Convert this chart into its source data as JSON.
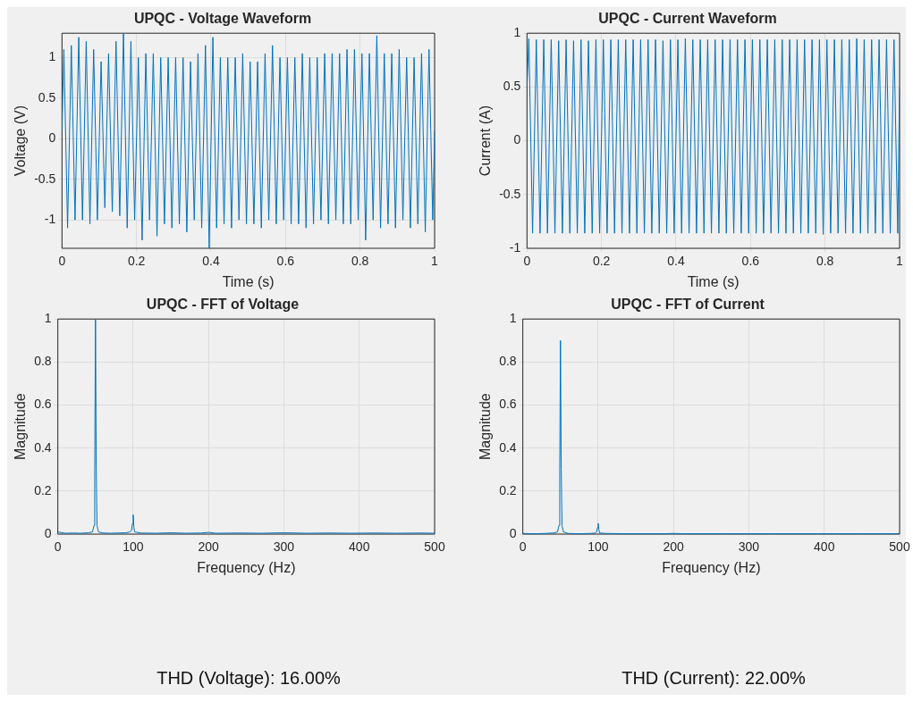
{
  "chart_data": [
    {
      "type": "line",
      "title": "UPQC - Voltage Waveform",
      "xlabel": "Time (s)",
      "ylabel": "Voltage (V)",
      "xlim": [
        0,
        1
      ],
      "xticks": [
        0,
        0.2,
        0.4,
        0.6,
        0.8,
        1
      ],
      "ylim": [
        -1.35,
        1.3
      ],
      "yticks": [
        -1,
        -0.5,
        0,
        0.5,
        1
      ],
      "grid": true,
      "marker": "none",
      "series": [
        {
          "color": "#0072bd",
          "x": [
            0,
            0.005,
            0.015,
            0.025,
            0.035,
            0.045,
            0.055,
            0.065,
            0.075,
            0.085,
            0.095,
            0.105,
            0.115,
            0.125,
            0.135,
            0.145,
            0.155,
            0.165,
            0.175,
            0.185,
            0.195,
            0.205,
            0.215,
            0.225,
            0.235,
            0.245,
            0.255,
            0.265,
            0.275,
            0.285,
            0.295,
            0.305,
            0.315,
            0.325,
            0.335,
            0.345,
            0.355,
            0.365,
            0.375,
            0.385,
            0.395,
            0.405,
            0.415,
            0.425,
            0.435,
            0.445,
            0.455,
            0.465,
            0.475,
            0.485,
            0.495,
            0.505,
            0.515,
            0.525,
            0.535,
            0.545,
            0.555,
            0.565,
            0.575,
            0.585,
            0.595,
            0.605,
            0.615,
            0.625,
            0.635,
            0.645,
            0.655,
            0.665,
            0.675,
            0.685,
            0.695,
            0.705,
            0.715,
            0.725,
            0.735,
            0.745,
            0.755,
            0.765,
            0.775,
            0.785,
            0.795,
            0.805,
            0.815,
            0.825,
            0.835,
            0.845,
            0.855,
            0.865,
            0.875,
            0.885,
            0.895,
            0.905,
            0.915,
            0.925,
            0.935,
            0.945,
            0.955,
            0.965,
            0.975,
            0.985,
            0.995,
            1
          ],
          "values": [
            0.1,
            1.1,
            -1.1,
            1.15,
            -1.0,
            1.25,
            -1.0,
            1.2,
            -1.05,
            1.1,
            -1.0,
            0.95,
            -0.85,
            1.05,
            -0.9,
            1.2,
            -0.95,
            1.3,
            -1.1,
            1.2,
            -1.0,
            1.0,
            -1.25,
            1.05,
            -1.0,
            1.05,
            -1.2,
            1.0,
            -1.05,
            1.0,
            -1.1,
            1.0,
            -1.05,
            1.0,
            -1.15,
            0.95,
            -1.0,
            1.05,
            -1.1,
            1.15,
            -1.35,
            1.25,
            -1.1,
            1.0,
            -1.05,
            1.0,
            -1.1,
            1.0,
            -1.0,
            1.05,
            -1.05,
            0.95,
            -1.05,
            0.95,
            -1.1,
            1.05,
            -1.0,
            1.15,
            -1.05,
            1.0,
            -1.0,
            1.0,
            -1.05,
            1.0,
            -1.05,
            1.05,
            -1.1,
            1.0,
            -1.05,
            1.0,
            -1.0,
            1.05,
            -1.05,
            1.05,
            -1.0,
            1.05,
            -1.05,
            1.1,
            -1.05,
            1.1,
            -1.0,
            1.05,
            -1.25,
            1.05,
            -1.0,
            1.27,
            -1.1,
            1.05,
            -1.05,
            1.05,
            -1.1,
            1.1,
            -1.0,
            1.0,
            -1.1,
            1.0,
            -1.05,
            1.05,
            -1.15,
            1.1,
            -1.0,
            0.1
          ]
        }
      ]
    },
    {
      "type": "line",
      "title": "UPQC - Current Waveform",
      "xlabel": "Time (s)",
      "ylabel": "Current (A)",
      "xlim": [
        0,
        1
      ],
      "xticks": [
        0,
        0.2,
        0.4,
        0.6,
        0.8,
        1
      ],
      "ylim": [
        -1,
        1
      ],
      "yticks": [
        -1,
        -0.5,
        0,
        0.5,
        1
      ],
      "grid": true,
      "marker": "none",
      "series": [
        {
          "color": "#0072bd",
          "x": [
            0,
            0.005,
            0.015,
            0.025,
            0.035,
            0.045,
            0.055,
            0.065,
            0.075,
            0.085,
            0.095,
            0.105,
            0.115,
            0.125,
            0.135,
            0.145,
            0.155,
            0.165,
            0.175,
            0.185,
            0.195,
            0.205,
            0.215,
            0.225,
            0.235,
            0.245,
            0.255,
            0.265,
            0.275,
            0.285,
            0.295,
            0.305,
            0.315,
            0.325,
            0.335,
            0.345,
            0.355,
            0.365,
            0.375,
            0.385,
            0.395,
            0.405,
            0.415,
            0.425,
            0.435,
            0.445,
            0.455,
            0.465,
            0.475,
            0.485,
            0.495,
            0.505,
            0.515,
            0.525,
            0.535,
            0.545,
            0.555,
            0.565,
            0.575,
            0.585,
            0.595,
            0.605,
            0.615,
            0.625,
            0.635,
            0.645,
            0.655,
            0.665,
            0.675,
            0.685,
            0.695,
            0.705,
            0.715,
            0.725,
            0.735,
            0.745,
            0.755,
            0.765,
            0.775,
            0.785,
            0.795,
            0.805,
            0.815,
            0.825,
            0.835,
            0.845,
            0.855,
            0.865,
            0.875,
            0.885,
            0.895,
            0.905,
            0.915,
            0.925,
            0.935,
            0.945,
            0.955,
            0.965,
            0.975,
            0.985,
            0.995,
            1
          ],
          "values": [
            0.5,
            0.95,
            -0.86,
            0.94,
            -0.86,
            0.94,
            -0.86,
            0.94,
            -0.86,
            0.93,
            -0.86,
            0.94,
            -0.86,
            0.93,
            -0.86,
            0.94,
            -0.86,
            0.93,
            -0.86,
            0.94,
            -0.86,
            0.94,
            -0.86,
            0.94,
            -0.86,
            0.94,
            -0.86,
            0.94,
            -0.86,
            0.94,
            -0.86,
            0.94,
            -0.86,
            0.94,
            -0.86,
            0.94,
            -0.86,
            0.93,
            -0.86,
            0.94,
            -0.86,
            0.94,
            -0.86,
            0.95,
            -0.86,
            0.94,
            -0.86,
            0.94,
            -0.86,
            0.94,
            -0.86,
            0.94,
            -0.86,
            0.94,
            -0.86,
            0.94,
            -0.86,
            0.94,
            -0.86,
            0.94,
            -0.86,
            0.94,
            -0.86,
            0.94,
            -0.86,
            0.94,
            -0.86,
            0.94,
            -0.86,
            0.94,
            -0.86,
            0.94,
            -0.86,
            0.94,
            -0.86,
            0.94,
            -0.86,
            0.94,
            -0.86,
            0.94,
            -0.87,
            0.94,
            -0.86,
            0.94,
            -0.86,
            0.94,
            -0.86,
            0.94,
            -0.86,
            0.95,
            -0.86,
            0.94,
            -0.86,
            0.94,
            -0.86,
            0.94,
            -0.86,
            0.94,
            -0.86,
            0.94,
            -0.86,
            0.5
          ]
        }
      ]
    },
    {
      "type": "line",
      "title": "UPQC - FFT of Voltage",
      "xlabel": "Frequency (Hz)",
      "ylabel": "Magnitude",
      "xlim": [
        0,
        500
      ],
      "xticks": [
        0,
        100,
        200,
        300,
        400,
        500
      ],
      "ylim": [
        0,
        1
      ],
      "yticks": [
        0,
        0.2,
        0.4,
        0.6,
        0.8,
        1
      ],
      "grid": true,
      "marker": "none",
      "annotations": [
        "THD (Voltage): 16.00%"
      ],
      "series": [
        {
          "color": "#0072bd",
          "x": [
            0,
            10,
            20,
            30,
            40,
            46,
            48,
            49,
            50,
            51,
            52,
            54,
            60,
            70,
            80,
            90,
            96,
            98,
            99,
            100,
            101,
            102,
            110,
            130,
            150,
            170,
            190,
            200,
            210,
            240,
            270,
            300,
            330,
            360,
            390,
            420,
            450,
            480,
            500
          ],
          "values": [
            0.01,
            0.004,
            0.005,
            0.004,
            0.006,
            0.01,
            0.04,
            0.3,
            1,
            0.3,
            0.04,
            0.01,
            0.005,
            0.004,
            0.005,
            0.006,
            0.01,
            0.02,
            0.05,
            0.09,
            0.03,
            0.01,
            0.005,
            0.004,
            0.006,
            0.004,
            0.005,
            0.008,
            0.004,
            0.005,
            0.004,
            0.006,
            0.004,
            0.005,
            0.004,
            0.005,
            0.004,
            0.005,
            0.004
          ]
        }
      ]
    },
    {
      "type": "line",
      "title": "UPQC - FFT of Current",
      "xlabel": "Frequency (Hz)",
      "ylabel": "Magnitude",
      "xlim": [
        0,
        500
      ],
      "xticks": [
        0,
        100,
        200,
        300,
        400,
        500
      ],
      "ylim": [
        0,
        1
      ],
      "yticks": [
        0,
        0.2,
        0.4,
        0.6,
        0.8,
        1
      ],
      "grid": true,
      "marker": "none",
      "annotations": [
        "THD (Current): 22.00%"
      ],
      "series": [
        {
          "color": "#0072bd",
          "x": [
            0,
            10,
            20,
            30,
            40,
            46,
            48,
            49,
            50,
            51,
            52,
            54,
            60,
            70,
            80,
            90,
            96,
            98,
            99,
            100,
            101,
            102,
            110,
            130,
            150,
            170,
            190,
            200,
            210,
            240,
            270,
            300,
            330,
            360,
            390,
            420,
            450,
            480,
            500
          ],
          "values": [
            0.003,
            0.002,
            0.002,
            0.003,
            0.005,
            0.01,
            0.04,
            0.3,
            0.9,
            0.3,
            0.04,
            0.01,
            0.003,
            0.002,
            0.002,
            0.003,
            0.005,
            0.01,
            0.03,
            0.05,
            0.02,
            0.005,
            0.003,
            0.002,
            0.002,
            0.002,
            0.002,
            0.003,
            0.002,
            0.002,
            0.002,
            0.002,
            0.002,
            0.002,
            0.002,
            0.002,
            0.002,
            0.002,
            0.002
          ]
        }
      ]
    }
  ]
}
